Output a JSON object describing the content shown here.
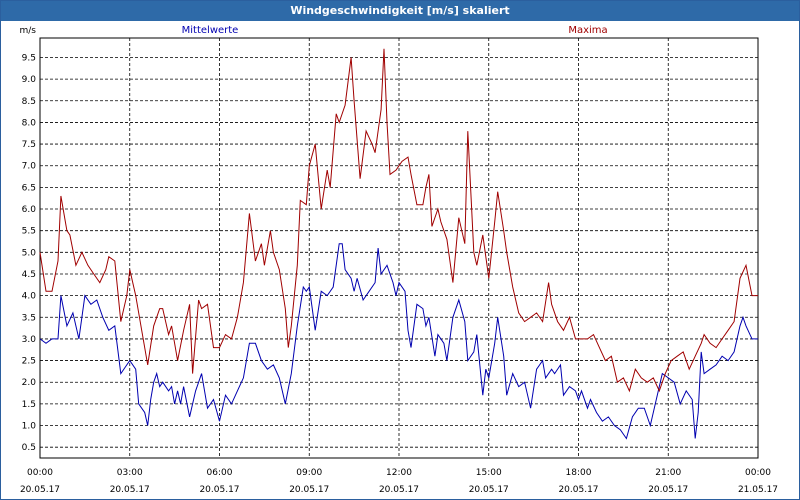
{
  "window": {
    "title": "Windgeschwindigkeit [m/s] skaliert"
  },
  "chart_data": {
    "type": "line",
    "title": "Windgeschwindigkeit [m/s] skaliert",
    "ylabel": "m/s",
    "ylim": [
      0.25,
      9.95
    ],
    "xlim_hours": [
      0,
      24
    ],
    "y_ticks": [
      "0.5",
      "1.0",
      "1.5",
      "2.0",
      "2.5",
      "3.0",
      "3.5",
      "4.0",
      "4.5",
      "5.0",
      "5.5",
      "6.0",
      "6.5",
      "7.0",
      "7.5",
      "8.0",
      "8.5",
      "9.0",
      "9.5"
    ],
    "x_ticks": [
      {
        "time": "00:00",
        "date": "20.05.17"
      },
      {
        "time": "03:00",
        "date": "20.05.17"
      },
      {
        "time": "06:00",
        "date": "20.05.17"
      },
      {
        "time": "09:00",
        "date": "20.05.17"
      },
      {
        "time": "12:00",
        "date": "20.05.17"
      },
      {
        "time": "15:00",
        "date": "20.05.17"
      },
      {
        "time": "18:00",
        "date": "20.05.17"
      },
      {
        "time": "21:00",
        "date": "20.05.17"
      },
      {
        "time": "00:00",
        "date": "21.05.17"
      }
    ],
    "grid": true,
    "series": [
      {
        "name": "Mittelwerte",
        "color": "#0000b0",
        "points": [
          [
            0.0,
            3.0
          ],
          [
            0.2,
            2.9
          ],
          [
            0.4,
            3.0
          ],
          [
            0.6,
            3.0
          ],
          [
            0.7,
            4.0
          ],
          [
            0.9,
            3.3
          ],
          [
            1.1,
            3.6
          ],
          [
            1.3,
            3.0
          ],
          [
            1.5,
            4.0
          ],
          [
            1.7,
            3.8
          ],
          [
            1.9,
            3.9
          ],
          [
            2.1,
            3.5
          ],
          [
            2.3,
            3.2
          ],
          [
            2.5,
            3.3
          ],
          [
            2.7,
            2.2
          ],
          [
            2.9,
            2.4
          ],
          [
            3.0,
            2.5
          ],
          [
            3.2,
            2.3
          ],
          [
            3.3,
            1.5
          ],
          [
            3.5,
            1.3
          ],
          [
            3.6,
            1.0
          ],
          [
            3.7,
            1.6
          ],
          [
            3.8,
            2.0
          ],
          [
            3.9,
            2.2
          ],
          [
            4.0,
            1.9
          ],
          [
            4.1,
            2.0
          ],
          [
            4.3,
            1.8
          ],
          [
            4.4,
            1.9
          ],
          [
            4.5,
            1.5
          ],
          [
            4.6,
            1.8
          ],
          [
            4.7,
            1.5
          ],
          [
            4.8,
            1.9
          ],
          [
            5.0,
            1.2
          ],
          [
            5.2,
            1.8
          ],
          [
            5.4,
            2.2
          ],
          [
            5.6,
            1.4
          ],
          [
            5.8,
            1.6
          ],
          [
            6.0,
            1.1
          ],
          [
            6.2,
            1.7
          ],
          [
            6.4,
            1.5
          ],
          [
            6.6,
            1.8
          ],
          [
            6.8,
            2.1
          ],
          [
            7.0,
            2.9
          ],
          [
            7.2,
            2.9
          ],
          [
            7.4,
            2.5
          ],
          [
            7.6,
            2.3
          ],
          [
            7.8,
            2.4
          ],
          [
            8.0,
            2.1
          ],
          [
            8.2,
            1.5
          ],
          [
            8.4,
            2.2
          ],
          [
            8.6,
            3.3
          ],
          [
            8.8,
            4.2
          ],
          [
            8.9,
            4.1
          ],
          [
            9.0,
            4.2
          ],
          [
            9.2,
            3.2
          ],
          [
            9.4,
            4.1
          ],
          [
            9.6,
            4.0
          ],
          [
            9.8,
            4.2
          ],
          [
            10.0,
            5.2
          ],
          [
            10.1,
            5.2
          ],
          [
            10.2,
            4.6
          ],
          [
            10.4,
            4.4
          ],
          [
            10.5,
            4.1
          ],
          [
            10.6,
            4.4
          ],
          [
            10.8,
            3.9
          ],
          [
            11.0,
            4.1
          ],
          [
            11.2,
            4.3
          ],
          [
            11.3,
            5.1
          ],
          [
            11.4,
            4.5
          ],
          [
            11.6,
            4.7
          ],
          [
            11.8,
            4.3
          ],
          [
            11.9,
            4.0
          ],
          [
            12.0,
            4.3
          ],
          [
            12.2,
            4.1
          ],
          [
            12.3,
            3.2
          ],
          [
            12.4,
            2.8
          ],
          [
            12.6,
            3.8
          ],
          [
            12.8,
            3.7
          ],
          [
            12.9,
            3.3
          ],
          [
            13.0,
            3.5
          ],
          [
            13.2,
            2.6
          ],
          [
            13.3,
            3.1
          ],
          [
            13.5,
            2.9
          ],
          [
            13.6,
            2.5
          ],
          [
            13.8,
            3.5
          ],
          [
            14.0,
            3.9
          ],
          [
            14.2,
            3.4
          ],
          [
            14.3,
            2.5
          ],
          [
            14.5,
            2.7
          ],
          [
            14.6,
            3.1
          ],
          [
            14.8,
            1.7
          ],
          [
            14.9,
            2.3
          ],
          [
            15.0,
            2.1
          ],
          [
            15.2,
            2.9
          ],
          [
            15.3,
            3.5
          ],
          [
            15.5,
            2.6
          ],
          [
            15.6,
            1.7
          ],
          [
            15.8,
            2.2
          ],
          [
            16.0,
            1.9
          ],
          [
            16.2,
            2.0
          ],
          [
            16.4,
            1.4
          ],
          [
            16.6,
            2.3
          ],
          [
            16.8,
            2.5
          ],
          [
            16.9,
            2.1
          ],
          [
            17.1,
            2.3
          ],
          [
            17.2,
            2.2
          ],
          [
            17.4,
            2.4
          ],
          [
            17.5,
            1.7
          ],
          [
            17.7,
            1.9
          ],
          [
            17.9,
            1.8
          ],
          [
            18.0,
            1.6
          ],
          [
            18.1,
            1.8
          ],
          [
            18.3,
            1.4
          ],
          [
            18.4,
            1.6
          ],
          [
            18.6,
            1.3
          ],
          [
            18.8,
            1.1
          ],
          [
            19.0,
            1.2
          ],
          [
            19.2,
            1.0
          ],
          [
            19.4,
            0.9
          ],
          [
            19.6,
            0.7
          ],
          [
            19.8,
            1.2
          ],
          [
            20.0,
            1.4
          ],
          [
            20.2,
            1.4
          ],
          [
            20.4,
            1.0
          ],
          [
            20.6,
            1.6
          ],
          [
            20.8,
            2.2
          ],
          [
            21.0,
            2.1
          ],
          [
            21.2,
            2.0
          ],
          [
            21.4,
            1.5
          ],
          [
            21.6,
            1.8
          ],
          [
            21.8,
            1.6
          ],
          [
            21.9,
            0.7
          ],
          [
            22.0,
            1.3
          ],
          [
            22.1,
            2.7
          ],
          [
            22.2,
            2.2
          ],
          [
            22.4,
            2.3
          ],
          [
            22.6,
            2.4
          ],
          [
            22.8,
            2.6
          ],
          [
            23.0,
            2.5
          ],
          [
            23.2,
            2.7
          ],
          [
            23.4,
            3.3
          ],
          [
            23.5,
            3.5
          ],
          [
            23.6,
            3.3
          ],
          [
            23.8,
            3.0
          ],
          [
            24.0,
            3.0
          ]
        ]
      },
      {
        "name": "Maxima",
        "color": "#a00000",
        "points": [
          [
            0.0,
            5.0
          ],
          [
            0.2,
            4.1
          ],
          [
            0.4,
            4.1
          ],
          [
            0.6,
            4.8
          ],
          [
            0.7,
            6.3
          ],
          [
            0.9,
            5.5
          ],
          [
            1.0,
            5.4
          ],
          [
            1.2,
            4.7
          ],
          [
            1.4,
            5.0
          ],
          [
            1.6,
            4.7
          ],
          [
            1.8,
            4.5
          ],
          [
            2.0,
            4.3
          ],
          [
            2.2,
            4.6
          ],
          [
            2.3,
            4.9
          ],
          [
            2.5,
            4.8
          ],
          [
            2.7,
            3.4
          ],
          [
            2.9,
            4.0
          ],
          [
            3.0,
            4.6
          ],
          [
            3.2,
            4.0
          ],
          [
            3.4,
            3.2
          ],
          [
            3.6,
            2.4
          ],
          [
            3.8,
            3.3
          ],
          [
            4.0,
            3.7
          ],
          [
            4.1,
            3.7
          ],
          [
            4.3,
            3.1
          ],
          [
            4.4,
            3.3
          ],
          [
            4.6,
            2.5
          ],
          [
            4.8,
            3.2
          ],
          [
            5.0,
            3.8
          ],
          [
            5.1,
            2.2
          ],
          [
            5.3,
            3.9
          ],
          [
            5.4,
            3.7
          ],
          [
            5.6,
            3.8
          ],
          [
            5.8,
            2.8
          ],
          [
            6.0,
            2.8
          ],
          [
            6.2,
            3.1
          ],
          [
            6.4,
            3.0
          ],
          [
            6.6,
            3.5
          ],
          [
            6.8,
            4.3
          ],
          [
            7.0,
            5.9
          ],
          [
            7.2,
            4.8
          ],
          [
            7.4,
            5.2
          ],
          [
            7.5,
            4.7
          ],
          [
            7.7,
            5.5
          ],
          [
            7.8,
            5.0
          ],
          [
            8.0,
            4.6
          ],
          [
            8.2,
            3.7
          ],
          [
            8.3,
            2.8
          ],
          [
            8.4,
            3.3
          ],
          [
            8.6,
            4.7
          ],
          [
            8.7,
            6.2
          ],
          [
            8.9,
            6.1
          ],
          [
            9.0,
            7.0
          ],
          [
            9.2,
            7.5
          ],
          [
            9.4,
            6.0
          ],
          [
            9.6,
            6.9
          ],
          [
            9.7,
            6.5
          ],
          [
            9.9,
            8.2
          ],
          [
            10.0,
            8.0
          ],
          [
            10.2,
            8.4
          ],
          [
            10.4,
            9.5
          ],
          [
            10.5,
            8.5
          ],
          [
            10.7,
            6.7
          ],
          [
            10.9,
            7.8
          ],
          [
            11.1,
            7.5
          ],
          [
            11.2,
            7.3
          ],
          [
            11.4,
            8.3
          ],
          [
            11.5,
            9.7
          ],
          [
            11.6,
            8.0
          ],
          [
            11.7,
            6.8
          ],
          [
            11.9,
            6.9
          ],
          [
            12.1,
            7.1
          ],
          [
            12.3,
            7.2
          ],
          [
            12.4,
            6.8
          ],
          [
            12.6,
            6.1
          ],
          [
            12.8,
            6.1
          ],
          [
            12.9,
            6.5
          ],
          [
            13.0,
            6.8
          ],
          [
            13.1,
            5.6
          ],
          [
            13.3,
            6.0
          ],
          [
            13.4,
            5.7
          ],
          [
            13.6,
            5.3
          ],
          [
            13.8,
            4.3
          ],
          [
            14.0,
            5.8
          ],
          [
            14.2,
            5.2
          ],
          [
            14.3,
            7.8
          ],
          [
            14.4,
            6.4
          ],
          [
            14.5,
            5.0
          ],
          [
            14.6,
            4.7
          ],
          [
            14.8,
            5.4
          ],
          [
            14.9,
            4.9
          ],
          [
            15.0,
            4.4
          ],
          [
            15.2,
            5.7
          ],
          [
            15.3,
            6.4
          ],
          [
            15.5,
            5.5
          ],
          [
            15.6,
            5.0
          ],
          [
            15.8,
            4.2
          ],
          [
            16.0,
            3.6
          ],
          [
            16.2,
            3.4
          ],
          [
            16.4,
            3.5
          ],
          [
            16.6,
            3.6
          ],
          [
            16.8,
            3.4
          ],
          [
            17.0,
            4.3
          ],
          [
            17.1,
            3.8
          ],
          [
            17.3,
            3.4
          ],
          [
            17.5,
            3.2
          ],
          [
            17.7,
            3.5
          ],
          [
            17.9,
            3.0
          ],
          [
            18.1,
            3.0
          ],
          [
            18.3,
            3.0
          ],
          [
            18.5,
            3.1
          ],
          [
            18.7,
            2.8
          ],
          [
            18.9,
            2.5
          ],
          [
            19.1,
            2.6
          ],
          [
            19.3,
            2.0
          ],
          [
            19.5,
            2.1
          ],
          [
            19.7,
            1.8
          ],
          [
            19.9,
            2.3
          ],
          [
            20.1,
            2.1
          ],
          [
            20.3,
            2.0
          ],
          [
            20.5,
            2.1
          ],
          [
            20.7,
            1.8
          ],
          [
            20.9,
            2.2
          ],
          [
            21.1,
            2.5
          ],
          [
            21.3,
            2.6
          ],
          [
            21.5,
            2.7
          ],
          [
            21.7,
            2.3
          ],
          [
            21.9,
            2.6
          ],
          [
            22.1,
            2.9
          ],
          [
            22.2,
            3.1
          ],
          [
            22.4,
            2.9
          ],
          [
            22.6,
            2.8
          ],
          [
            22.8,
            3.0
          ],
          [
            23.0,
            3.2
          ],
          [
            23.2,
            3.4
          ],
          [
            23.4,
            4.4
          ],
          [
            23.6,
            4.7
          ],
          [
            23.8,
            4.0
          ],
          [
            24.0,
            4.0
          ]
        ]
      }
    ]
  }
}
